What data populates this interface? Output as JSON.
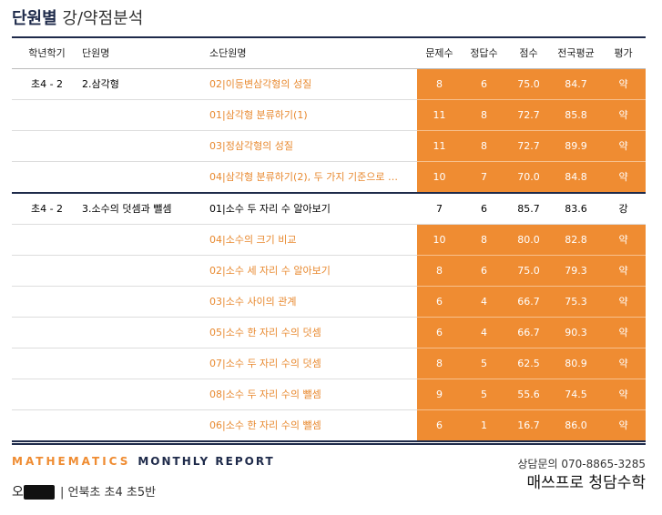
{
  "header": {
    "title_bold": "단원별",
    "title_rest": "강/약점분석"
  },
  "table": {
    "columns": [
      "학년학기",
      "단원명",
      "소단원명",
      "문제수",
      "정답수",
      "점수",
      "전국평균",
      "평가"
    ],
    "groups": [
      {
        "grade": "초4 - 2",
        "unit": "2.삼각형",
        "rows": [
          {
            "cells": [
              "02|이등변삼각형의 성질",
              "8",
              "6",
              "75.0",
              "84.7",
              "약"
            ],
            "weak": true
          },
          {
            "cells": [
              "01|삼각형 분류하기(1)",
              "11",
              "8",
              "72.7",
              "85.8",
              "약"
            ],
            "weak": true
          },
          {
            "cells": [
              "03|정삼각형의 성질",
              "11",
              "8",
              "72.7",
              "89.9",
              "약"
            ],
            "weak": true
          },
          {
            "cells": [
              "04|삼각형 분류하기(2), 두 가지 기준으로 …",
              "10",
              "7",
              "70.0",
              "84.8",
              "약"
            ],
            "weak": true
          }
        ]
      },
      {
        "grade": "초4 - 2",
        "unit": "3.소수의 덧셈과 뺄셈",
        "rows": [
          {
            "cells": [
              "01|소수 두 자리 수 알아보기",
              "7",
              "6",
              "85.7",
              "83.6",
              "강"
            ],
            "weak": false
          },
          {
            "cells": [
              "04|소수의 크기 비교",
              "10",
              "8",
              "80.0",
              "82.8",
              "약"
            ],
            "weak": true
          },
          {
            "cells": [
              "02|소수 세 자리 수 알아보기",
              "8",
              "6",
              "75.0",
              "79.3",
              "약"
            ],
            "weak": true
          },
          {
            "cells": [
              "03|소수 사이의 관계",
              "6",
              "4",
              "66.7",
              "75.3",
              "약"
            ],
            "weak": true
          },
          {
            "cells": [
              "05|소수 한 자리 수의 덧셈",
              "6",
              "4",
              "66.7",
              "90.3",
              "약"
            ],
            "weak": true
          },
          {
            "cells": [
              "07|소수 두 자리 수의 덧셈",
              "8",
              "5",
              "62.5",
              "80.9",
              "약"
            ],
            "weak": true
          },
          {
            "cells": [
              "08|소수 두 자리 수의 뺄셈",
              "9",
              "5",
              "55.6",
              "74.5",
              "약"
            ],
            "weak": true
          },
          {
            "cells": [
              "06|소수 한 자리 수의 뺄셈",
              "6",
              "1",
              "16.7",
              "86.0",
              "약"
            ],
            "weak": true
          }
        ]
      }
    ]
  },
  "footer": {
    "brand_math": "MATHEMATICS",
    "brand_report": "MONTHLY REPORT",
    "phone": "상담문의  070-8865-3285",
    "academy": "매쓰프로 청담수학",
    "student": "오",
    "school": "|  언북초 초4 초5반"
  }
}
